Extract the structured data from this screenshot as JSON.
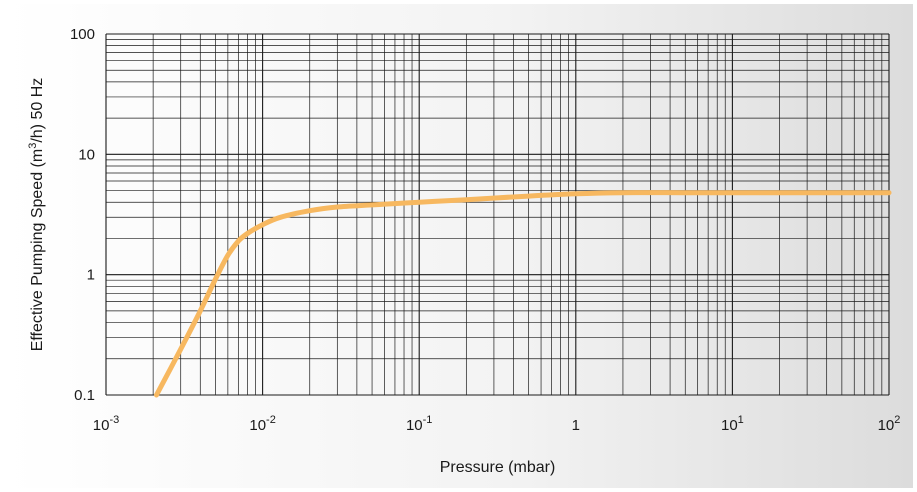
{
  "chart_data": {
    "type": "line",
    "xlabel": "Pressure (mbar)",
    "ylabel_parts": [
      "Effective Pumping Speed (m",
      "3",
      "/h) 50 Hz"
    ],
    "xscale": "log",
    "yscale": "log",
    "xlim": [
      0.001,
      100
    ],
    "ylim": [
      0.1,
      100
    ],
    "grid": true,
    "legend": "none",
    "x_ticks": [
      {
        "value": 0.001,
        "base": "10",
        "exp": "-3"
      },
      {
        "value": 0.01,
        "base": "10",
        "exp": "-2"
      },
      {
        "value": 0.1,
        "base": "10",
        "exp": "-1"
      },
      {
        "value": 1,
        "base": "1",
        "exp": ""
      },
      {
        "value": 10,
        "base": "10",
        "exp": "1"
      },
      {
        "value": 100,
        "base": "10",
        "exp": "2"
      }
    ],
    "y_ticks": [
      {
        "value": 0.1,
        "label": "0.1"
      },
      {
        "value": 1,
        "label": "1"
      },
      {
        "value": 10,
        "label": "10"
      },
      {
        "value": 100,
        "label": "100"
      }
    ],
    "series": [
      {
        "color": "#f7b860",
        "x": [
          0.0021,
          0.003,
          0.004,
          0.005,
          0.006,
          0.007,
          0.008,
          0.01,
          0.013,
          0.02,
          0.03,
          0.05,
          0.1,
          0.2,
          0.5,
          1,
          2,
          5,
          10,
          50,
          100
        ],
        "y": [
          0.1,
          0.24,
          0.5,
          0.92,
          1.45,
          1.9,
          2.2,
          2.6,
          3.0,
          3.4,
          3.65,
          3.8,
          4.0,
          4.2,
          4.5,
          4.7,
          4.8,
          4.8,
          4.8,
          4.8,
          4.8
        ]
      }
    ]
  },
  "colors": {
    "grid": "#1a1a1a",
    "curve": "#f7b860"
  }
}
